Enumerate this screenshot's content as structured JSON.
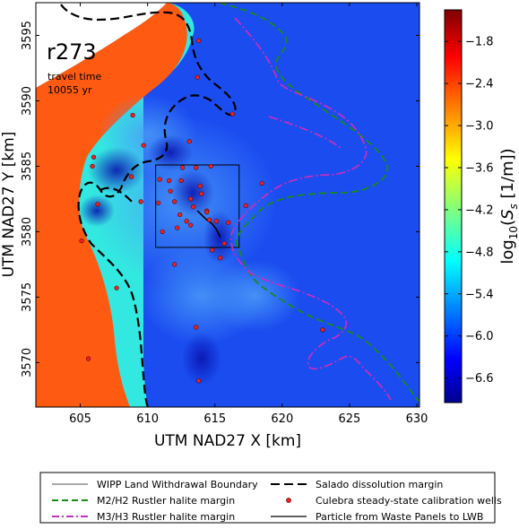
{
  "chart_data": {
    "type": "heatmap",
    "panel_label": "r273",
    "annotation_line1": "travel time",
    "annotation_line2": "10055 yr",
    "xlabel": "UTM NAD27 X [km]",
    "ylabel": "UTM NAD27 Y [km]",
    "xlim": [
      601.7,
      630.2
    ],
    "ylim": [
      3566.6,
      3597.5
    ],
    "x_ticks": [
      605,
      610,
      615,
      620,
      625,
      630
    ],
    "y_ticks": [
      3570,
      3575,
      3580,
      3585,
      3590,
      3595
    ],
    "colorbar": {
      "label": "log10(S_s [1/m])",
      "min": -6.95,
      "max": -1.35,
      "ticks": [
        -1.8,
        -2.4,
        -3.0,
        -3.6,
        -4.2,
        -4.8,
        -5.4,
        -6.0,
        -6.6
      ]
    },
    "zones": [
      {
        "name": "no-data",
        "value": null,
        "color": "#ffffff"
      },
      {
        "name": "high-storativity",
        "value": -2.55,
        "color": "#ff5a12"
      },
      {
        "name": "intermediate",
        "value": -5.1,
        "color": "#33e8e0"
      },
      {
        "name": "background",
        "value": -6.3,
        "color": "#1a4cf0"
      }
    ],
    "wipp_boundary": {
      "x": [
        610.6,
        616.8
      ],
      "y": [
        3578.8,
        3585.1
      ]
    },
    "particle_track": {
      "x": [
        613.7,
        614.0,
        614.4,
        614.8,
        615.1,
        615.4
      ],
      "y": [
        3581.6,
        3581.3,
        3580.9,
        3580.6,
        3580.2,
        3579.6
      ]
    },
    "wells": {
      "x": [
        613.8,
        613.7,
        616.3,
        608.9,
        609.7,
        605.9,
        606.3,
        610.9,
        611.6,
        613.1,
        614.7,
        608.8,
        612.6,
        613.6,
        612.5,
        613.9,
        611.7,
        610.8,
        612.0,
        613.2,
        614.0,
        613.4,
        612.4,
        612.9,
        614.4,
        612.2,
        613.2,
        614.6,
        615.1,
        614.4,
        616.0,
        615.7,
        606.0,
        609.5,
        611.1,
        615.4,
        612.0,
        617.3,
        618.5,
        605.1,
        607.7,
        613.6,
        613.8,
        623.0,
        605.6,
        614.8
      ],
      "y": [
        3594.6,
        3591.8,
        3589.0,
        3588.9,
        3586.6,
        3585.0,
        3582.1,
        3584.0,
        3583.9,
        3586.9,
        3585.0,
        3584.2,
        3584.9,
        3584.9,
        3583.9,
        3583.5,
        3583.1,
        3582.2,
        3582.3,
        3582.5,
        3582.9,
        3581.9,
        3581.3,
        3580.8,
        3581.6,
        3580.3,
        3580.5,
        3580.9,
        3580.8,
        3581.5,
        3580.7,
        3579.1,
        3585.7,
        3582.3,
        3580.0,
        3578.0,
        3577.5,
        3582.0,
        3583.7,
        3579.3,
        3575.7,
        3572.7,
        3568.6,
        3572.5,
        3570.3,
        3578.6
      ]
    },
    "legend": {
      "placement": "bottom",
      "entries": [
        {
          "label": "WIPP Land Withdrawal Boundary",
          "style": "line",
          "color": "#777777",
          "dash": "none"
        },
        {
          "label": "Salado dissolution margin",
          "style": "line",
          "color": "#000000",
          "dash": "long"
        },
        {
          "label": "M2/H2 Rustler halite margin",
          "style": "line",
          "color": "#1a8a1a",
          "dash": "medium"
        },
        {
          "label": "Culebra steady-state calibration wells",
          "style": "marker",
          "color": "#ee2222",
          "dash": "none"
        },
        {
          "label": "M3/H3 Rustler halite margin",
          "style": "line",
          "color": "#c030c0",
          "dash": "dashdot"
        },
        {
          "label": "Particle from Waste Panels to LWB",
          "style": "line",
          "color": "#000000",
          "dash": "none"
        }
      ]
    }
  }
}
